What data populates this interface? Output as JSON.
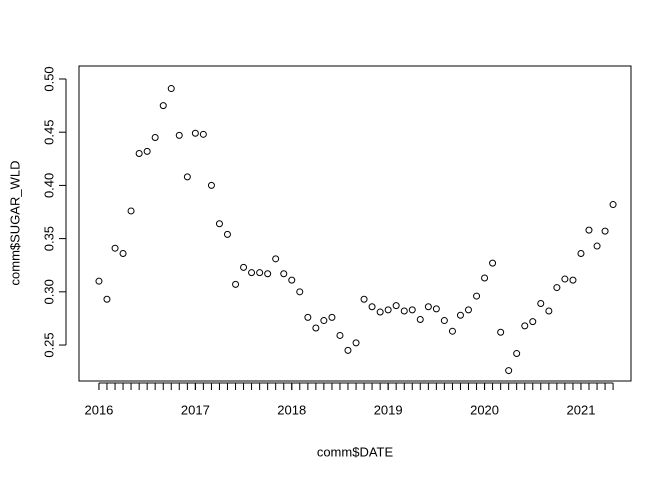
{
  "chart_data": {
    "type": "scatter",
    "x_label": "comm$DATE",
    "y_label": "comm$SUGAR_WLD",
    "x": [
      2016,
      2016.083,
      2016.167,
      2016.25,
      2016.333,
      2016.417,
      2016.5,
      2016.583,
      2016.667,
      2016.75,
      2016.833,
      2016.917,
      2017,
      2017.083,
      2017.167,
      2017.25,
      2017.333,
      2017.417,
      2017.5,
      2017.583,
      2017.667,
      2017.75,
      2017.833,
      2017.917,
      2018,
      2018.083,
      2018.167,
      2018.25,
      2018.333,
      2018.417,
      2018.5,
      2018.583,
      2018.667,
      2018.75,
      2018.833,
      2018.917,
      2019,
      2019.083,
      2019.167,
      2019.25,
      2019.333,
      2019.417,
      2019.5,
      2019.583,
      2019.667,
      2019.75,
      2019.833,
      2019.917,
      2020,
      2020.083,
      2020.167,
      2020.25,
      2020.333,
      2020.417,
      2020.5,
      2020.583,
      2020.667,
      2020.75,
      2020.833,
      2020.917,
      2021,
      2021.083,
      2021.167,
      2021.25,
      2021.333
    ],
    "values": [
      0.31,
      0.293,
      0.341,
      0.336,
      0.376,
      0.43,
      0.432,
      0.445,
      0.475,
      0.491,
      0.447,
      0.408,
      0.449,
      0.448,
      0.4,
      0.364,
      0.354,
      0.307,
      0.323,
      0.318,
      0.318,
      0.317,
      0.331,
      0.317,
      0.311,
      0.3,
      0.276,
      0.266,
      0.273,
      0.276,
      0.259,
      0.245,
      0.252,
      0.293,
      0.286,
      0.281,
      0.283,
      0.287,
      0.282,
      0.283,
      0.274,
      0.286,
      0.284,
      0.273,
      0.263,
      0.278,
      0.283,
      0.296,
      0.313,
      0.327,
      0.262,
      0.226,
      0.242,
      0.268,
      0.272,
      0.289,
      0.282,
      0.304,
      0.312,
      0.311,
      0.336,
      0.358,
      0.343,
      0.357,
      0.382
    ],
    "color": "#000000",
    "xlim": [
      2015.793,
      2021.519
    ],
    "xticks": [
      2016,
      2017,
      2018,
      2019,
      2020,
      2021
    ],
    "ylim": [
      0.2162,
      0.5122
    ],
    "yticks": [
      {
        "value": 0.25,
        "label": "0.25"
      },
      {
        "value": 0.3,
        "label": "0.30"
      },
      {
        "value": 0.35,
        "label": "0.35"
      },
      {
        "value": 0.4,
        "label": "0.40"
      },
      {
        "value": 0.45,
        "label": "0.45"
      },
      {
        "value": 0.5,
        "label": "0.50"
      }
    ]
  }
}
